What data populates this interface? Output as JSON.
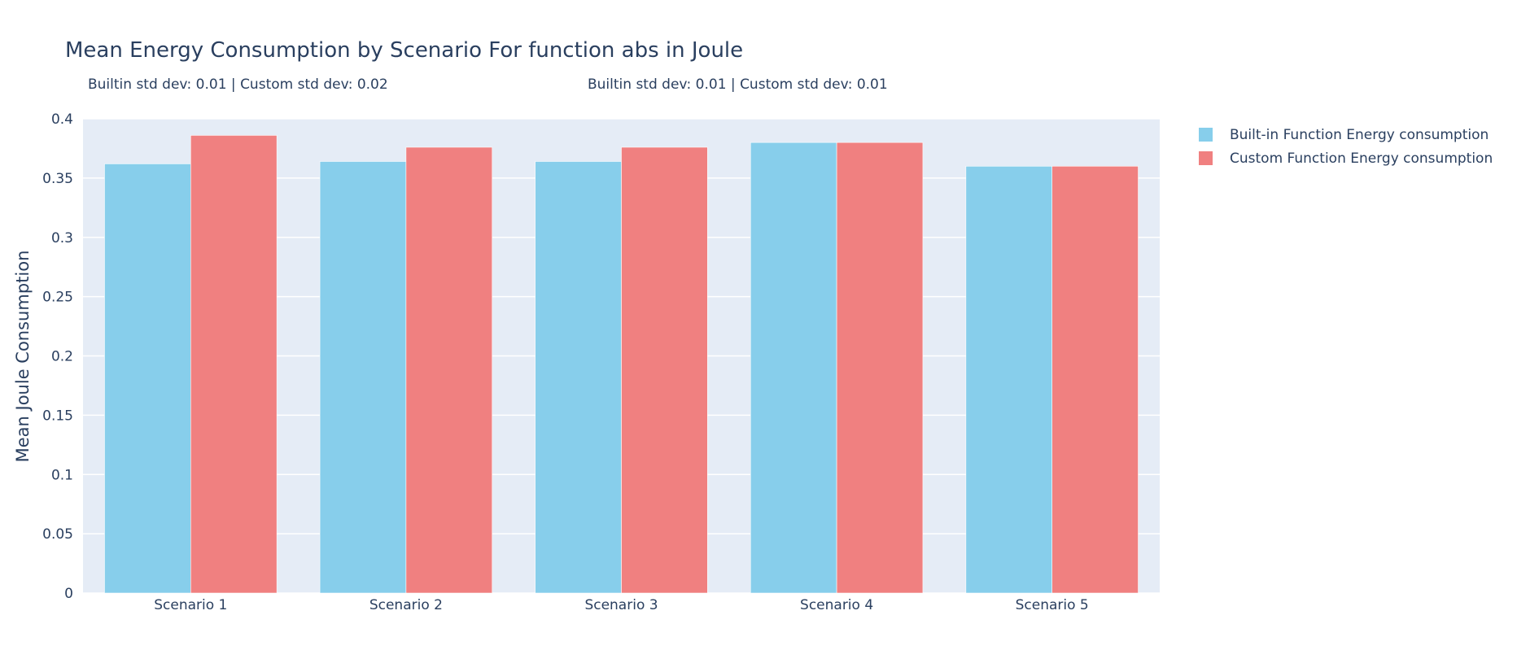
{
  "chart_data": {
    "type": "bar",
    "title": "Mean Energy Consumption by Scenario For function abs in Joule",
    "ylabel": "Mean Joule Consumption",
    "xlabel": "",
    "categories": [
      "Scenario 1",
      "Scenario 2",
      "Scenario 3",
      "Scenario 4",
      "Scenario 5"
    ],
    "series": [
      {
        "name": "Built-in Function Energy consumption",
        "color": "#87ceeb",
        "values": [
          0.362,
          0.364,
          0.364,
          0.38,
          0.36
        ]
      },
      {
        "name": "Custom Function Energy consumption",
        "color": "#f08080",
        "values": [
          0.386,
          0.376,
          0.376,
          0.38,
          0.36
        ]
      }
    ],
    "ylim": [
      0,
      0.4
    ],
    "yticks": [
      0,
      0.05,
      0.1,
      0.15,
      0.2,
      0.25,
      0.3,
      0.35,
      0.4
    ],
    "ytick_labels": [
      "0",
      "0.05",
      "0.1",
      "0.15",
      "0.2",
      "0.25",
      "0.3",
      "0.35",
      "0.4"
    ],
    "grid": true,
    "legend_position": "top-right outside",
    "annotations": [
      "Builtin std dev: 0.01 | Custom std dev: 0.02",
      "Builtin std dev: 0.01 | Custom std dev: 0.01"
    ],
    "plot_background": "#e5ecf6"
  }
}
